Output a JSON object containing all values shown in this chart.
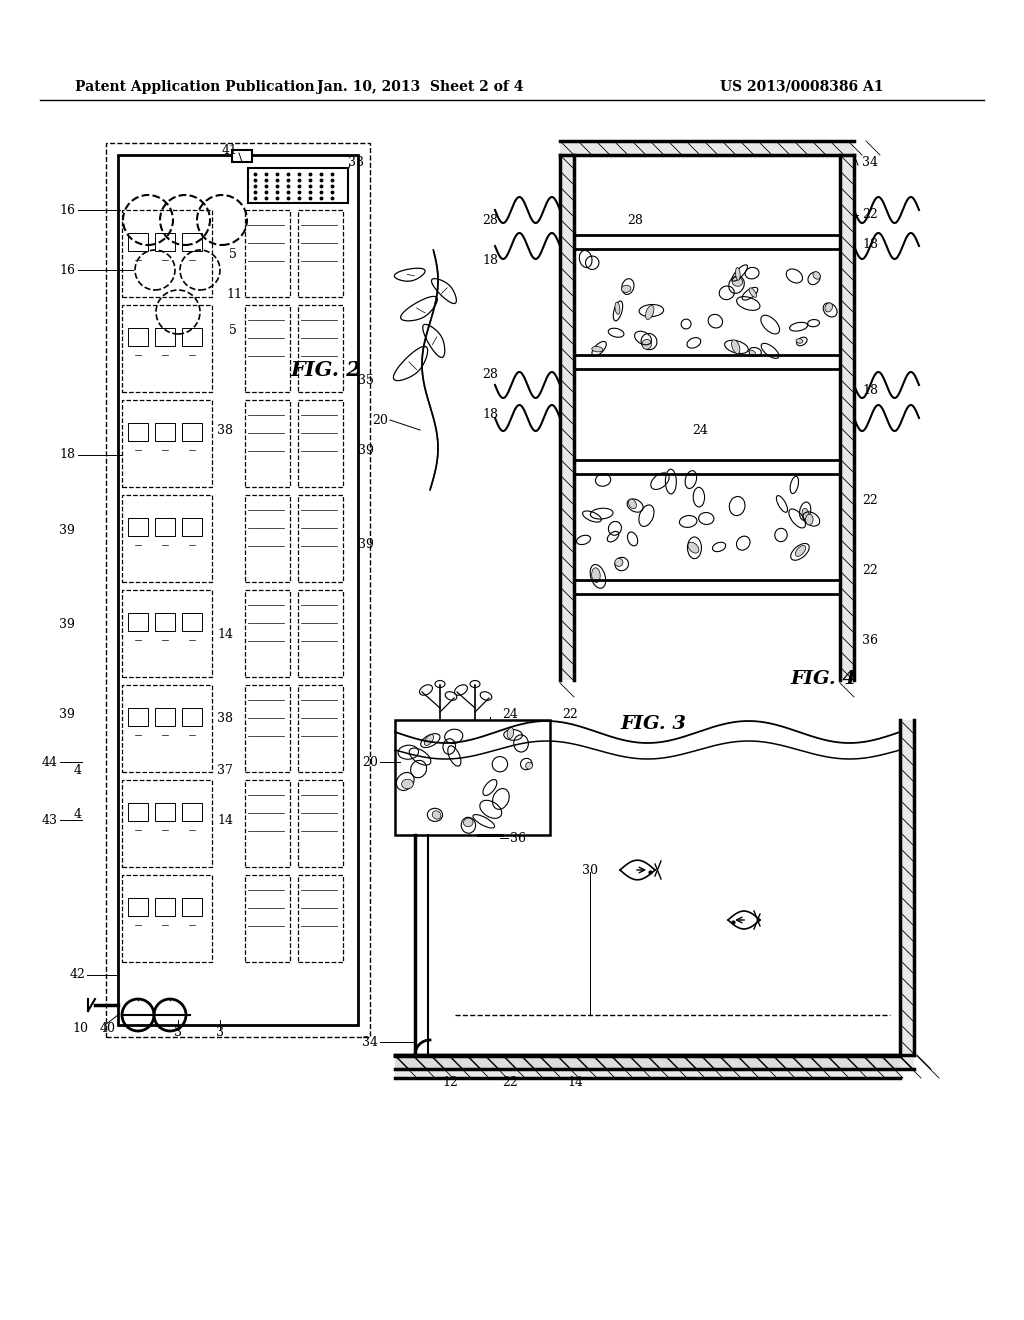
{
  "bg_color": "#ffffff",
  "header_text": "Patent Application Publication",
  "header_date": "Jan. 10, 2013  Sheet 2 of 4",
  "header_patent": "US 2013/0008386 A1",
  "fig2_label": "FIG. 2",
  "fig3_label": "FIG. 3",
  "fig4_label": "FIG. 4"
}
